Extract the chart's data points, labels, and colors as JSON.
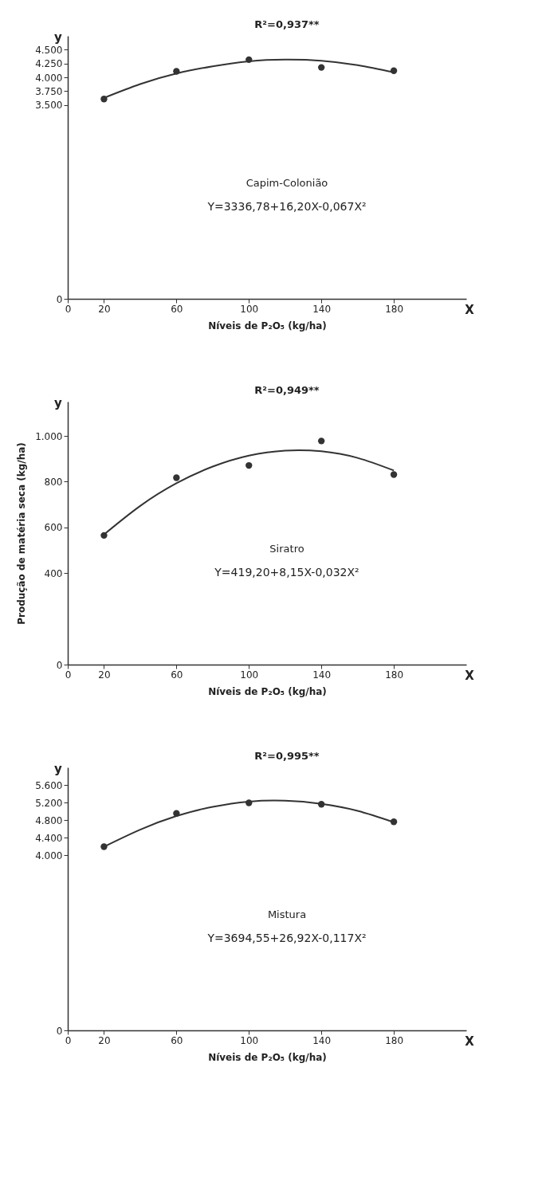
{
  "chart_data": [
    {
      "type": "scatter",
      "xlabel": "Níveis de P₂O₅ (kg/ha)",
      "xlim": [
        0,
        220
      ],
      "xticks": [
        0,
        20,
        60,
        100,
        140,
        180
      ],
      "ylim": [
        0,
        4750
      ],
      "yticks": [
        0,
        {
          "value": 3500,
          "label": "3.500"
        },
        {
          "value": 3750,
          "label": "3.750"
        },
        {
          "value": 4000,
          "label": "4.000"
        },
        {
          "value": 4250,
          "label": "4.250"
        },
        {
          "value": 4500,
          "label": "4.500"
        }
      ],
      "grid": false,
      "annotations": [
        "R²=0,937**",
        "Capim-Colonião",
        "Y=3336,78+16,20X-0,067X²",
        "y",
        "X"
      ],
      "series": [
        {
          "type": "scatter",
          "marker": "circle",
          "color": "#333333",
          "x": [
            20,
            60,
            100,
            140,
            180
          ],
          "values": [
            3610,
            4110,
            4320,
            4180,
            4120
          ]
        },
        {
          "type": "line",
          "line_style": "solid",
          "color": "#333333",
          "x": [
            20,
            40,
            60,
            80,
            100,
            120,
            140,
            160,
            180
          ],
          "values": [
            3630,
            3880,
            4070,
            4200,
            4290,
            4320,
            4300,
            4220,
            4090
          ]
        }
      ]
    },
    {
      "type": "scatter",
      "xlabel": "Níveis de P₂O₅ (kg/ha)",
      "ylabel": "Produção de matéria seca (kg/ha)",
      "xlim": [
        0,
        220
      ],
      "xticks": [
        0,
        20,
        60,
        100,
        140,
        180
      ],
      "ylim": [
        0,
        1150
      ],
      "yticks": [
        0,
        400,
        600,
        800,
        {
          "value": 1000,
          "label": "1.000"
        }
      ],
      "grid": false,
      "annotations": [
        "R²=0,949**",
        "Siratro",
        "Y=419,20+8,15X-0,032X²",
        "y",
        "X"
      ],
      "series": [
        {
          "type": "scatter",
          "marker": "circle",
          "color": "#333333",
          "x": [
            20,
            60,
            100,
            140,
            180
          ],
          "values": [
            565,
            817,
            871,
            978,
            831
          ]
        },
        {
          "type": "line",
          "line_style": "solid",
          "color": "#333333",
          "x": [
            20,
            40,
            60,
            80,
            100,
            120,
            140,
            160,
            180
          ],
          "values": [
            569,
            694,
            793,
            866,
            914,
            936,
            933,
            904,
            849
          ]
        }
      ]
    },
    {
      "type": "scatter",
      "xlabel": "Níveis de P₂O₅ (kg/ha)",
      "xlim": [
        0,
        220
      ],
      "xticks": [
        0,
        20,
        60,
        100,
        140,
        180
      ],
      "ylim": [
        0,
        6000
      ],
      "yticks": [
        0,
        {
          "value": 4000,
          "label": "4.000"
        },
        {
          "value": 4400,
          "label": "4.400"
        },
        {
          "value": 4800,
          "label": "4.800"
        },
        {
          "value": 5200,
          "label": "5.200"
        },
        {
          "value": 5600,
          "label": "5.600"
        }
      ],
      "grid": false,
      "annotations": [
        "R²=0,995**",
        "Mistura",
        "Y=3694,55+26,92X-0,117X²",
        "y",
        "X"
      ],
      "series": [
        {
          "type": "scatter",
          "marker": "circle",
          "color": "#333333",
          "x": [
            20,
            60,
            100,
            140,
            180
          ],
          "values": [
            4190,
            4950,
            5190,
            5160,
            4760
          ]
        },
        {
          "type": "line",
          "line_style": "solid",
          "color": "#333333",
          "x": [
            20,
            40,
            60,
            80,
            100,
            120,
            140,
            160,
            180
          ],
          "values": [
            4190,
            4580,
            4890,
            5100,
            5220,
            5240,
            5170,
            5010,
            4750
          ]
        }
      ]
    }
  ]
}
